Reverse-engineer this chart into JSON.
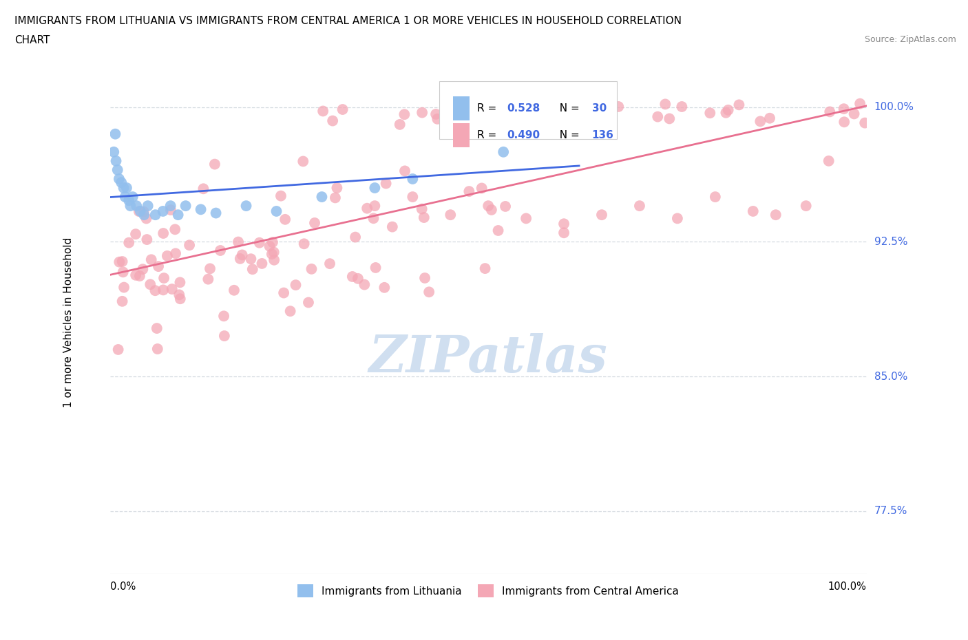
{
  "title_line1": "IMMIGRANTS FROM LITHUANIA VS IMMIGRANTS FROM CENTRAL AMERICA 1 OR MORE VEHICLES IN HOUSEHOLD CORRELATION",
  "title_line2": "CHART",
  "source_text": "Source: ZipAtlas.com",
  "ylabel": "1 or more Vehicles in Household",
  "yticklabels": [
    "77.5%",
    "85.0%",
    "92.5%",
    "100.0%"
  ],
  "ytick_positions": [
    0.775,
    0.85,
    0.925,
    1.0
  ],
  "xlim": [
    0.0,
    1.0
  ],
  "ylim": [
    0.74,
    1.02
  ],
  "legend_label1": "Immigrants from Lithuania",
  "legend_label2": "Immigrants from Central America",
  "blue_color": "#92BFED",
  "pink_color": "#F4A7B5",
  "trendline_blue": "#4169E1",
  "trendline_pink": "#E87090",
  "text_blue": "#4169E1",
  "watermark_color": "#D0DFF0",
  "grid_color": "#C8D0D8",
  "source_color": "#888888"
}
